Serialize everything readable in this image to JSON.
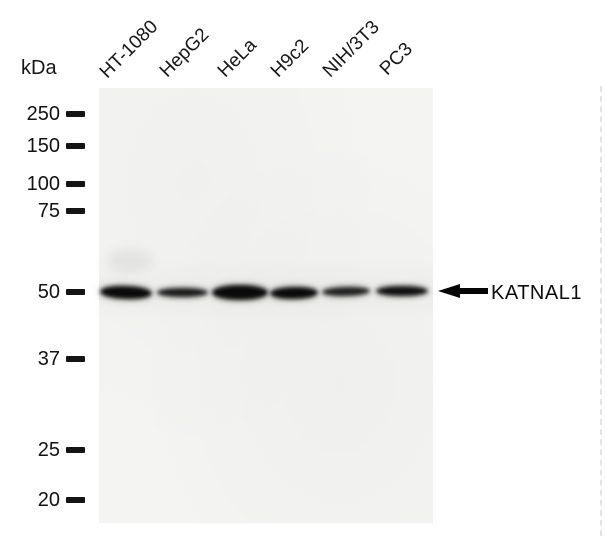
{
  "figure": {
    "type": "western-blot",
    "unit_label": "kDa",
    "marker_values": [
      "250",
      "150",
      "100",
      "75",
      "50",
      "37",
      "25",
      "20"
    ],
    "lane_labels": [
      "HT-1080",
      "HepG2",
      "HeLa",
      "H9c2",
      "NIH/3T3",
      "PC3"
    ],
    "target_label": "KATNAL1",
    "target_band_kda": "50",
    "bands": [
      {
        "lane": "HT-1080",
        "approx_kda": "50",
        "intensity": "strong"
      },
      {
        "lane": "HepG2",
        "approx_kda": "50",
        "intensity": "medium"
      },
      {
        "lane": "HeLa",
        "approx_kda": "50",
        "intensity": "very strong"
      },
      {
        "lane": "H9c2",
        "approx_kda": "50",
        "intensity": "strong"
      },
      {
        "lane": "NIH/3T3",
        "approx_kda": "50",
        "intensity": "medium"
      },
      {
        "lane": "PC3",
        "approx_kda": "50",
        "intensity": "strong"
      }
    ],
    "colors": {
      "band": "#0a0a0a",
      "membrane_background": "#f4f4f3",
      "page_background": "#ffffff",
      "text": "#111111"
    }
  }
}
